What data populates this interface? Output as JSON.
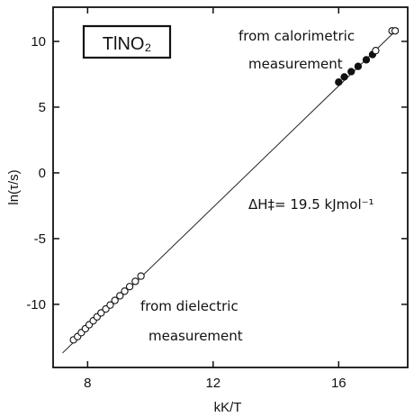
{
  "chart_data": {
    "type": "scatter",
    "title": "",
    "xlabel": "kK/T",
    "ylabel": "ln(τ/s)",
    "xlim": [
      6.9,
      18.2
    ],
    "ylim": [
      -14.8,
      12.6
    ],
    "x_ticks": [
      8,
      12,
      16
    ],
    "y_ticks": [
      -10,
      -5,
      0,
      5,
      10
    ],
    "grid": false,
    "legend": "none",
    "series": [
      {
        "marker": "open-circle",
        "x": [
          7.55,
          7.68,
          7.8,
          7.93,
          8.05,
          8.18,
          8.3,
          8.43,
          8.58,
          8.72,
          8.87,
          9.03,
          9.18,
          9.34,
          9.52,
          9.7
        ],
        "y": [
          -12.7,
          -12.45,
          -12.15,
          -11.85,
          -11.55,
          -11.25,
          -10.95,
          -10.65,
          -10.35,
          -10.05,
          -9.7,
          -9.35,
          -9.0,
          -8.65,
          -8.25,
          -7.85
        ]
      },
      {
        "marker": "filled-circle",
        "x": [
          16.0,
          16.18,
          16.4,
          16.62,
          16.88,
          17.08
        ],
        "y": [
          6.9,
          7.3,
          7.7,
          8.1,
          8.6,
          9.0
        ]
      },
      {
        "marker": "open-circle",
        "x": [
          17.18,
          17.7,
          17.8
        ],
        "y": [
          9.3,
          10.8,
          10.8
        ]
      }
    ],
    "fit_line": {
      "x": [
        7.2,
        17.9
      ],
      "y": [
        -13.7,
        11.0
      ]
    },
    "annotations": {
      "compound": "TlNO₂",
      "calorimetric_line1": "from calorimetric",
      "calorimetric_line2": "measurement",
      "enthalpy": "ΔH‡= 19.5 kJmol⁻¹",
      "dielectric_line1": "from dielectric",
      "dielectric_line2": "measurement"
    }
  }
}
